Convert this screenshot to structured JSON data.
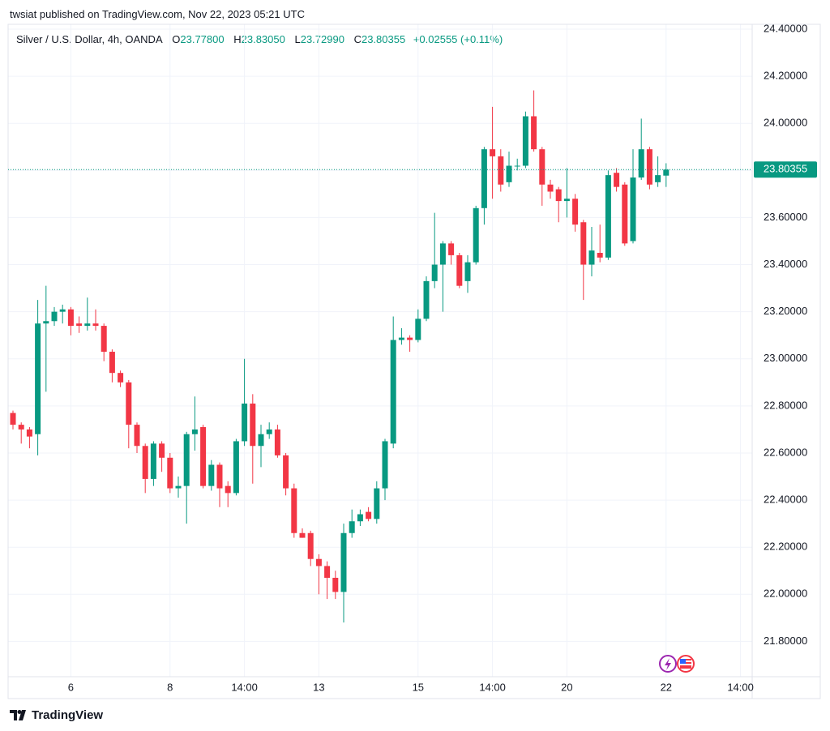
{
  "header": {
    "published": "twsiat published on TradingView.com, Nov 22, 2023 05:21 UTC"
  },
  "legend": {
    "symbol": "Silver / U.S. Dollar, 4h, OANDA",
    "open_key": "O",
    "open": "23.77800",
    "high_key": "H",
    "high": "23.83050",
    "low_key": "L",
    "low": "23.72990",
    "close_key": "C",
    "close": "23.80355",
    "change": "+0.02555 (+0.11%)"
  },
  "footer": {
    "brand": "TradingView"
  },
  "chart_data": {
    "type": "candlestick",
    "categories": [
      null,
      null,
      null,
      null,
      null,
      null,
      null,
      "6",
      null,
      null,
      null,
      null,
      null,
      null,
      null,
      null,
      null,
      null,
      null,
      "8",
      null,
      null,
      null,
      null,
      null,
      null,
      null,
      null,
      "14:00",
      null,
      null,
      null,
      null,
      null,
      null,
      null,
      null,
      "13",
      null,
      null,
      null,
      null,
      null,
      null,
      null,
      null,
      null,
      null,
      null,
      "15",
      null,
      null,
      null,
      null,
      null,
      null,
      null,
      null,
      "14:00",
      null,
      null,
      null,
      null,
      null,
      null,
      null,
      null,
      "20",
      null,
      null,
      null,
      null,
      null,
      null,
      null,
      null,
      null,
      null,
      null,
      "22",
      null,
      null,
      null,
      null,
      null,
      null,
      null,
      null,
      "14:00",
      null
    ],
    "open": [
      22.77,
      22.72,
      22.7,
      22.68,
      23.15,
      23.16,
      23.2,
      23.21,
      23.15,
      23.14,
      23.15,
      23.14,
      23.03,
      22.94,
      22.9,
      22.72,
      22.63,
      22.49,
      22.64,
      22.58,
      22.45,
      22.46,
      22.68,
      22.71,
      22.46,
      22.55,
      22.46,
      22.43,
      22.65,
      22.81,
      22.63,
      22.68,
      22.7,
      22.59,
      22.45,
      22.26,
      22.26,
      22.15,
      22.12,
      22.07,
      22.01,
      22.26,
      22.31,
      22.35,
      22.32,
      22.45,
      22.64,
      23.08,
      23.09,
      23.08,
      23.17,
      23.33,
      23.4,
      23.49,
      23.44,
      23.33,
      23.41,
      23.64,
      23.89,
      23.86,
      23.75,
      23.82,
      23.82,
      24.03,
      23.89,
      23.74,
      23.72,
      23.67,
      23.68,
      23.58,
      23.4,
      23.45,
      23.43,
      23.79,
      23.74,
      23.5,
      23.77,
      23.89,
      23.75,
      23.778,
      null,
      null,
      null,
      null,
      null,
      null,
      null,
      null,
      null,
      null
    ],
    "high": [
      22.78,
      22.73,
      22.71,
      23.25,
      23.31,
      23.22,
      23.23,
      23.22,
      23.18,
      23.26,
      23.21,
      23.15,
      23.04,
      22.95,
      22.91,
      22.73,
      22.64,
      22.65,
      22.65,
      22.6,
      22.5,
      22.69,
      22.84,
      22.72,
      22.57,
      22.56,
      22.48,
      22.66,
      23.0,
      22.85,
      22.72,
      22.73,
      22.72,
      22.6,
      22.47,
      22.28,
      22.27,
      22.17,
      22.14,
      22.1,
      22.3,
      22.36,
      22.36,
      22.37,
      22.48,
      22.66,
      23.18,
      23.13,
      23.1,
      23.21,
      23.35,
      23.62,
      23.5,
      23.5,
      23.45,
      23.44,
      23.65,
      23.9,
      24.07,
      23.89,
      23.88,
      23.85,
      24.05,
      24.14,
      23.9,
      23.76,
      23.73,
      23.81,
      23.7,
      23.59,
      23.56,
      23.57,
      23.8,
      23.81,
      23.75,
      23.89,
      24.02,
      23.9,
      23.86,
      23.8305,
      null,
      null,
      null,
      null,
      null,
      null,
      null,
      null,
      null,
      null
    ],
    "low": [
      22.7,
      22.64,
      22.62,
      22.59,
      22.86,
      23.14,
      23.15,
      23.1,
      23.11,
      23.12,
      23.12,
      22.99,
      22.9,
      22.88,
      22.62,
      22.6,
      22.43,
      22.46,
      22.52,
      22.43,
      22.41,
      22.3,
      22.61,
      22.45,
      22.44,
      22.37,
      22.37,
      22.42,
      22.63,
      22.47,
      22.54,
      22.66,
      22.58,
      22.42,
      22.24,
      22.24,
      22.12,
      22.0,
      21.98,
      21.98,
      21.88,
      22.24,
      22.29,
      22.31,
      22.3,
      22.4,
      22.62,
      23.06,
      23.03,
      23.07,
      23.16,
      23.3,
      23.2,
      23.4,
      23.3,
      23.28,
      23.4,
      23.57,
      23.68,
      23.71,
      23.73,
      23.8,
      23.81,
      23.88,
      23.65,
      23.68,
      23.58,
      23.6,
      23.54,
      23.25,
      23.35,
      23.41,
      23.42,
      23.71,
      23.48,
      23.49,
      23.76,
      23.72,
      23.73,
      23.7299,
      null,
      null,
      null,
      null,
      null,
      null,
      null,
      null,
      null,
      null
    ],
    "close": [
      22.72,
      22.7,
      22.67,
      23.15,
      23.16,
      23.2,
      23.21,
      23.14,
      23.14,
      23.15,
      23.14,
      23.03,
      22.94,
      22.9,
      22.72,
      22.63,
      22.49,
      22.64,
      22.58,
      22.45,
      22.46,
      22.68,
      22.7,
      22.46,
      22.55,
      22.45,
      22.43,
      22.65,
      22.81,
      22.63,
      22.68,
      22.7,
      22.59,
      22.45,
      22.26,
      22.24,
      22.15,
      22.12,
      22.07,
      22.01,
      22.26,
      22.31,
      22.34,
      22.32,
      22.45,
      22.65,
      23.08,
      23.09,
      23.08,
      23.17,
      23.33,
      23.4,
      23.49,
      23.44,
      23.31,
      23.41,
      23.64,
      23.89,
      23.86,
      23.74,
      23.82,
      23.82,
      24.03,
      23.89,
      23.74,
      23.71,
      23.67,
      23.68,
      23.57,
      23.4,
      23.46,
      23.43,
      23.78,
      23.73,
      23.49,
      23.77,
      23.89,
      23.74,
      23.78,
      23.80355,
      null,
      null,
      null,
      null,
      null,
      null,
      null,
      null,
      null,
      null
    ],
    "up_color": "#089981",
    "down_color": "#f23645",
    "ylim": [
      21.65,
      24.455
    ],
    "yticks": [
      {
        "value": 21.8,
        "label": "21.80000"
      },
      {
        "value": 22.0,
        "label": "22.00000"
      },
      {
        "value": 22.2,
        "label": "22.20000"
      },
      {
        "value": 22.4,
        "label": "22.40000"
      },
      {
        "value": 22.6,
        "label": "22.60000"
      },
      {
        "value": 22.8,
        "label": "22.80000"
      },
      {
        "value": 23.0,
        "label": "23.00000"
      },
      {
        "value": 23.2,
        "label": "23.20000"
      },
      {
        "value": 23.4,
        "label": "23.40000"
      },
      {
        "value": 23.6,
        "label": "23.60000"
      },
      {
        "value": 23.8,
        "label": "23.80000"
      },
      {
        "value": 24.0,
        "label": "24.00000"
      },
      {
        "value": 24.2,
        "label": "24.20000"
      },
      {
        "value": 24.4,
        "label": "24.40000"
      }
    ],
    "last_price": {
      "value": 23.80355,
      "label": "23.80355"
    },
    "grid": true
  }
}
